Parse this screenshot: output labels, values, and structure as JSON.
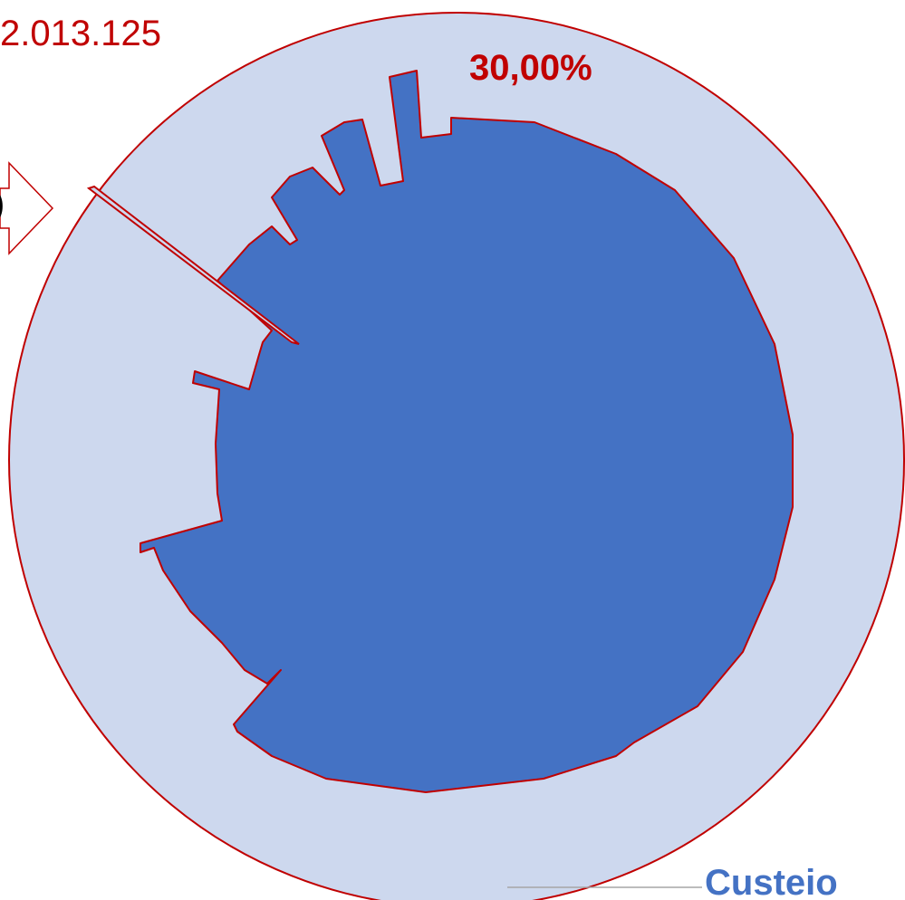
{
  "labels": {
    "value_top_left": "2.013.125",
    "percent": "30,00%",
    "category": "Custeio",
    "cut_off_text": ")"
  }
}
